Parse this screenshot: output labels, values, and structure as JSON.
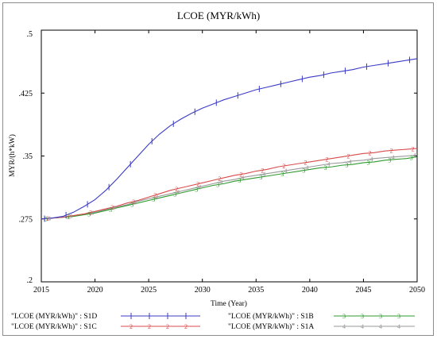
{
  "chart_data": {
    "type": "line",
    "title": "LCOE (MYR/kWh)",
    "xlabel": "Time (Year)",
    "ylabel": "MYR/(h*kW)",
    "xlim": [
      2015,
      2050
    ],
    "ylim": [
      0.2,
      0.5
    ],
    "x_ticks": [
      2015,
      2020,
      2025,
      2030,
      2035,
      2040,
      2045,
      2050
    ],
    "y_ticks": [
      0.2,
      0.275,
      0.35,
      0.425,
      0.5
    ],
    "y_tick_labels": [
      ".2",
      ".275",
      ".35",
      ".425",
      ".5"
    ],
    "grid": false,
    "legend_position": "bottom",
    "x": [
      2015,
      2016,
      2017,
      2018,
      2019,
      2020,
      2021,
      2022,
      2023,
      2024,
      2025,
      2026,
      2027,
      2028,
      2029,
      2030,
      2031,
      2032,
      2033,
      2034,
      2035,
      2036,
      2037,
      2038,
      2039,
      2040,
      2041,
      2042,
      2043,
      2044,
      2045,
      2046,
      2047,
      2048,
      2049,
      2050
    ],
    "series": [
      {
        "name": "\"LCOE (MYR/kWh)\" : S1D",
        "marker": "1",
        "color": "#3b3bc6",
        "values": [
          0.275,
          0.276,
          0.278,
          0.283,
          0.29,
          0.298,
          0.309,
          0.322,
          0.336,
          0.35,
          0.364,
          0.376,
          0.386,
          0.394,
          0.401,
          0.407,
          0.412,
          0.417,
          0.421,
          0.425,
          0.429,
          0.432,
          0.435,
          0.438,
          0.441,
          0.444,
          0.446,
          0.449,
          0.451,
          0.453,
          0.456,
          0.458,
          0.46,
          0.462,
          0.464,
          0.466
        ]
      },
      {
        "name": "\"LCOE (MYR/kWh)\" : S1C",
        "marker": "2",
        "color": "#d94a4a",
        "values": [
          0.275,
          0.276,
          0.277,
          0.279,
          0.281,
          0.284,
          0.287,
          0.29,
          0.294,
          0.297,
          0.301,
          0.305,
          0.309,
          0.312,
          0.315,
          0.318,
          0.321,
          0.324,
          0.327,
          0.329,
          0.332,
          0.334,
          0.337,
          0.339,
          0.341,
          0.343,
          0.345,
          0.347,
          0.349,
          0.351,
          0.353,
          0.354,
          0.356,
          0.357,
          0.358,
          0.359
        ]
      },
      {
        "name": "\"LCOE (MYR/kWh)\" : S1B",
        "marker": "3",
        "color": "#2e9a2e",
        "values": [
          0.275,
          0.276,
          0.277,
          0.278,
          0.28,
          0.282,
          0.285,
          0.288,
          0.291,
          0.294,
          0.297,
          0.3,
          0.303,
          0.306,
          0.309,
          0.312,
          0.315,
          0.317,
          0.32,
          0.322,
          0.324,
          0.326,
          0.328,
          0.33,
          0.332,
          0.334,
          0.336,
          0.337,
          0.339,
          0.34,
          0.342,
          0.343,
          0.345,
          0.346,
          0.347,
          0.349
        ]
      },
      {
        "name": "\"LCOE (MYR/kWh)\" : S1A",
        "marker": "4",
        "color": "#9a9a9a",
        "values": [
          0.275,
          0.276,
          0.277,
          0.279,
          0.281,
          0.283,
          0.286,
          0.289,
          0.292,
          0.296,
          0.299,
          0.302,
          0.305,
          0.308,
          0.311,
          0.314,
          0.317,
          0.32,
          0.322,
          0.325,
          0.327,
          0.329,
          0.331,
          0.333,
          0.335,
          0.337,
          0.339,
          0.341,
          0.342,
          0.344,
          0.345,
          0.347,
          0.348,
          0.349,
          0.35,
          0.351
        ]
      }
    ]
  }
}
